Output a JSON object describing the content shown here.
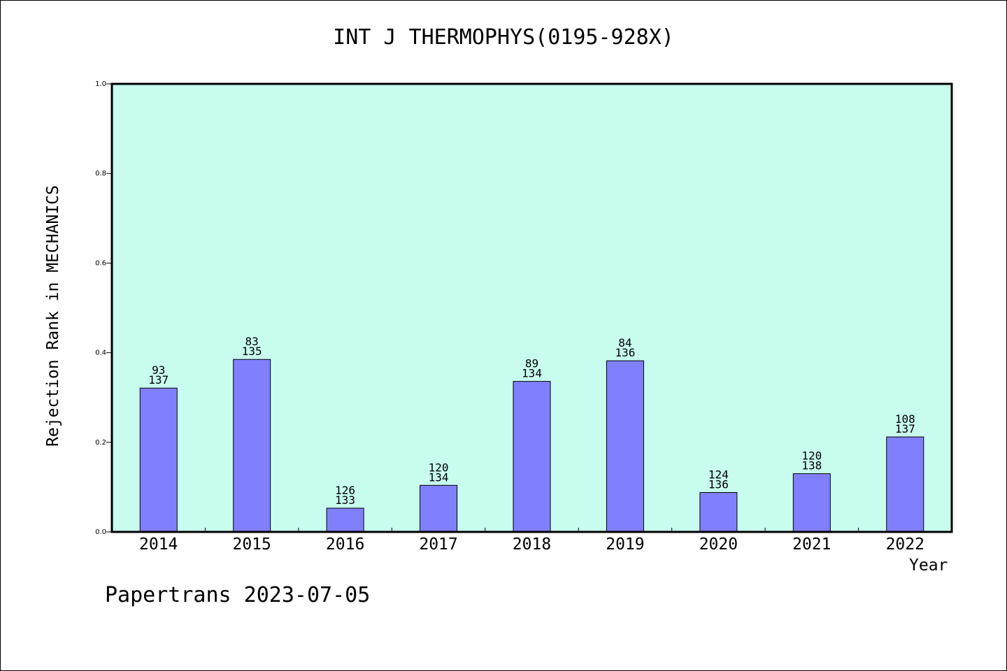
{
  "chart_data": {
    "type": "bar",
    "title": "INT J THERMOPHYS(0195-928X)",
    "xlabel": "Year",
    "ylabel": "Rejection Rank in MECHANICS",
    "ylim": [
      0,
      1.0
    ],
    "yticks": [
      "0.0",
      "0.2",
      "0.4",
      "0.6",
      "0.8",
      "1.0"
    ],
    "categories": [
      "2014",
      "2015",
      "2016",
      "2017",
      "2018",
      "2019",
      "2020",
      "2021",
      "2022"
    ],
    "values": [
      0.321,
      0.385,
      0.053,
      0.104,
      0.336,
      0.382,
      0.088,
      0.13,
      0.212
    ],
    "labels_top": [
      "93",
      "83",
      "126",
      "120",
      "89",
      "84",
      "124",
      "120",
      "108"
    ],
    "labels_bottom": [
      "137",
      "135",
      "133",
      "134",
      "134",
      "136",
      "136",
      "138",
      "137"
    ],
    "grid": false,
    "colors": {
      "plot_background": "#c8fcee",
      "bar_fill": "#8080ff",
      "bar_stroke": "#000000"
    }
  },
  "footer": "Papertrans 2023-07-05"
}
